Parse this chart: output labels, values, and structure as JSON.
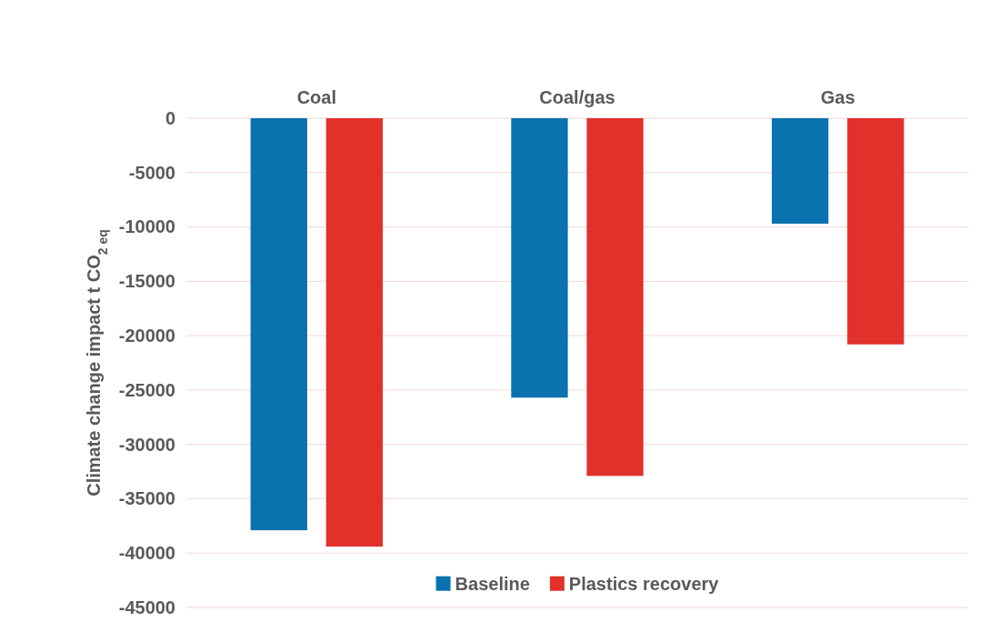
{
  "chart_data": {
    "type": "bar",
    "ylabel": "Climate change impact t CO$_{2 eq}$",
    "categories": [
      "Coal",
      "Coal/gas",
      "Gas"
    ],
    "series": [
      {
        "name": "Baseline",
        "color": "#0a72ae",
        "values": [
          -37900,
          -25700,
          -9700
        ]
      },
      {
        "name": "Plastics recovery",
        "color": "#e2302b",
        "values": [
          -39400,
          -32900,
          -20800
        ]
      }
    ],
    "ylim": [
      -45000,
      0
    ],
    "yticks": [
      0,
      -5000,
      -10000,
      -15000,
      -20000,
      -25000,
      -30000,
      -35000,
      -40000,
      -45000
    ],
    "grid": "y",
    "legend": "bottom"
  }
}
